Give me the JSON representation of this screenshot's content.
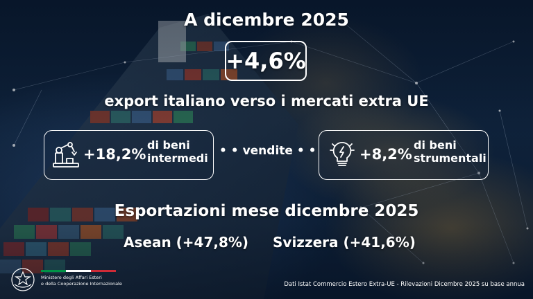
{
  "header": {
    "title": "A dicembre 2025",
    "headline_value": "+4,6%",
    "subtitle": "export italiano verso i mercati extra UE"
  },
  "stats": {
    "left": {
      "icon": "robot-arm-icon",
      "value": "+18,2%",
      "label_line1": "di beni",
      "label_line2": "intermedi"
    },
    "connector": "• • vendite • •",
    "right": {
      "icon": "lightbulb-gear-icon",
      "value": "+8,2%",
      "label_line1": "di beni",
      "label_line2": "strumentali"
    }
  },
  "section": {
    "title": "Esportazioni mese dicembre 2025",
    "markets": [
      {
        "label": "Asean (+47,8%)"
      },
      {
        "label": "Svizzera (+41,6%)"
      }
    ]
  },
  "footer": {
    "ministry_line1": "Ministero degli Affari Esteri",
    "ministry_line2": "e della Cooperazione Internazionale",
    "source": "Dati Istat Commercio Estero Extra-UE - Rilevazioni Dicembre 2025 su base annua",
    "flag_colors": [
      "#009246",
      "#ffffff",
      "#ce2b37"
    ]
  },
  "colors": {
    "text": "#ffffff",
    "background": "#0b1c33"
  }
}
